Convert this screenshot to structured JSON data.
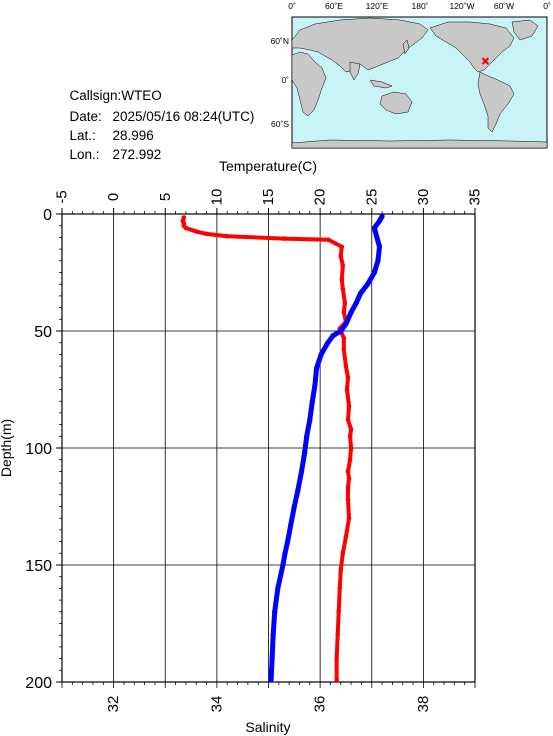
{
  "station": {
    "callsign_label": "Callsign:",
    "callsign": "WTEO",
    "date_label": "Date:",
    "date": "2025/05/16 08:24(UTC)",
    "lat_label": "Lat.:",
    "lat": "28.996",
    "lon_label": "Lon.:",
    "lon": "272.992"
  },
  "map": {
    "top_labels": [
      "0˚",
      "60˚E",
      "120˚E",
      "180˚",
      "120˚W",
      "60˚W",
      "0˚"
    ],
    "left_labels": [
      "60˚N",
      "0˚",
      "60˚S"
    ],
    "ocean_color": "#c8f4f8",
    "land_color": "#c8c8c8",
    "marker_color": "#ff0000",
    "marker_lon": 272.992,
    "marker_lat": 28.996
  },
  "chart_data": {
    "type": "line",
    "top_axis_label": "Temperature(C)",
    "bottom_axis_label": "Salinity",
    "left_axis_label": "Depth(m)",
    "temperature_ticks": [
      -5,
      0,
      5,
      10,
      15,
      20,
      25,
      30,
      35
    ],
    "salinity_ticks": [
      32,
      34,
      36,
      38
    ],
    "depth_ticks": [
      0,
      50,
      100,
      150,
      200
    ],
    "temperature_range": [
      -5,
      35
    ],
    "salinity_range": [
      31,
      39
    ],
    "depth_range": [
      0,
      200
    ],
    "series": [
      {
        "name": "Temperature",
        "axis": "temperature",
        "color": "#ff0000",
        "points": [
          [
            21.6,
            199
          ],
          [
            21.6,
            190
          ],
          [
            21.7,
            180
          ],
          [
            21.8,
            170
          ],
          [
            21.9,
            160
          ],
          [
            22.0,
            152
          ],
          [
            22.2,
            145
          ],
          [
            22.5,
            138
          ],
          [
            22.8,
            130
          ],
          [
            22.7,
            122
          ],
          [
            22.7,
            117
          ],
          [
            22.8,
            113
          ],
          [
            22.7,
            110
          ],
          [
            22.9,
            105
          ],
          [
            23.0,
            100
          ],
          [
            22.9,
            95
          ],
          [
            23.0,
            92
          ],
          [
            22.7,
            88
          ],
          [
            22.8,
            82
          ],
          [
            22.6,
            75
          ],
          [
            22.7,
            70
          ],
          [
            22.5,
            65
          ],
          [
            22.3,
            58
          ],
          [
            22.3,
            53
          ],
          [
            21.9,
            49
          ],
          [
            22.5,
            46
          ],
          [
            22.3,
            42
          ],
          [
            22.4,
            38
          ],
          [
            22.2,
            32
          ],
          [
            22.1,
            28
          ],
          [
            22.2,
            22
          ],
          [
            22.0,
            18
          ],
          [
            22.1,
            14
          ],
          [
            20.8,
            11
          ],
          [
            16.5,
            10.5
          ],
          [
            11.0,
            9.5
          ],
          [
            9.0,
            8.5
          ],
          [
            8.0,
            7.5
          ],
          [
            7.0,
            6
          ],
          [
            6.8,
            5
          ],
          [
            6.8,
            4
          ],
          [
            6.7,
            3
          ],
          [
            6.8,
            1.5
          ]
        ]
      },
      {
        "name": "Salinity",
        "axis": "salinity",
        "color": "#0000ff",
        "points": [
          [
            35.05,
            199
          ],
          [
            35.07,
            190
          ],
          [
            35.09,
            180
          ],
          [
            35.12,
            170
          ],
          [
            35.18,
            160
          ],
          [
            35.28,
            150
          ],
          [
            35.32,
            145
          ],
          [
            35.37,
            140
          ],
          [
            35.43,
            133
          ],
          [
            35.5,
            125
          ],
          [
            35.57,
            118
          ],
          [
            35.64,
            110
          ],
          [
            35.7,
            102
          ],
          [
            35.74,
            95
          ],
          [
            35.8,
            88
          ],
          [
            35.85,
            80
          ],
          [
            35.9,
            73
          ],
          [
            35.93,
            66
          ],
          [
            36.02,
            60
          ],
          [
            36.15,
            55
          ],
          [
            36.25,
            52
          ],
          [
            36.4,
            50
          ],
          [
            36.5,
            47
          ],
          [
            36.6,
            42
          ],
          [
            36.7,
            38
          ],
          [
            36.78,
            34
          ],
          [
            36.92,
            30
          ],
          [
            37.05,
            25
          ],
          [
            37.12,
            20
          ],
          [
            37.15,
            14
          ],
          [
            37.1,
            10
          ],
          [
            37.05,
            6
          ],
          [
            37.15,
            3
          ],
          [
            37.2,
            1
          ]
        ]
      }
    ]
  }
}
